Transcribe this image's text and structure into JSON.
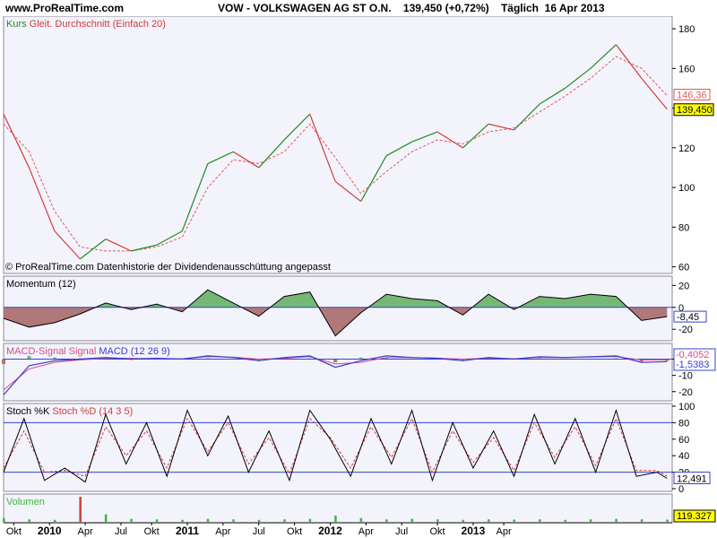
{
  "header": {
    "site": "www.ProRealTime.com",
    "title": "VOW - VOLKSWAGEN AG ST O.N.    139,450 (+0,72%)    Täglich  16 Apr 2013"
  },
  "colors": {
    "panel_bg": "#f3f3fc",
    "price_up": "#228b22",
    "price_down": "#d23c3c",
    "ma_line": "#e05a5a",
    "zero_line": "#3344cc",
    "macd_line": "#3b3bd0",
    "signal_line": "#d84a8a",
    "stoch_k": "#000000",
    "stoch_d": "#d23c3c",
    "hist_pos": "#74b874",
    "hist_neg": "#b07878",
    "value_box": "#ffff00",
    "volume_bar": "#3cb83c"
  },
  "chart_data": [
    {
      "id": "price",
      "type": "line",
      "legend": [
        "Kurs",
        "Gleit. Durchschnitt (Einfach 20)"
      ],
      "footnote": "© ProRealTime.com  Datenhistorie der Dividendenausschüttung angepasst",
      "ylim": [
        58,
        185
      ],
      "yticks": [
        60,
        80,
        100,
        120,
        140,
        160,
        180
      ],
      "ma_label": "146,36",
      "last_label": "139,450",
      "x": [
        0,
        5,
        10,
        15,
        20,
        25,
        30,
        35,
        40,
        45,
        50,
        55,
        60,
        65,
        70,
        75,
        80,
        85,
        90,
        95,
        100,
        105,
        110,
        115,
        120,
        125,
        130
      ],
      "close": [
        137,
        110,
        78,
        64,
        74,
        68,
        71,
        78,
        112,
        118,
        110,
        124,
        137,
        103,
        93,
        116,
        123,
        128,
        120,
        132,
        129,
        142,
        150,
        160,
        172,
        155,
        139.45
      ],
      "ma20": [
        132,
        118,
        88,
        70,
        68,
        68,
        70,
        75,
        100,
        114,
        112,
        118,
        132,
        115,
        97,
        108,
        118,
        124,
        122,
        128,
        130,
        138,
        146,
        155,
        166,
        160,
        146.36
      ]
    },
    {
      "id": "momentum",
      "type": "area",
      "legend": [
        "Momentum (12)"
      ],
      "ylim": [
        -28,
        26
      ],
      "yticks": [
        20,
        0,
        -20
      ],
      "last_label": "-8,45",
      "x": [
        0,
        5,
        10,
        15,
        20,
        25,
        30,
        35,
        40,
        45,
        50,
        55,
        60,
        65,
        70,
        75,
        80,
        85,
        90,
        95,
        100,
        105,
        110,
        115,
        120,
        125,
        130
      ],
      "values": [
        -10,
        -18,
        -14,
        -6,
        4,
        -2,
        3,
        -4,
        16,
        4,
        -8,
        10,
        14,
        -26,
        -5,
        12,
        8,
        6,
        -7,
        12,
        -2,
        10,
        8,
        12,
        10,
        -12,
        -8.45
      ]
    },
    {
      "id": "macd",
      "type": "line",
      "legend": [
        "MACD-Signal Signal",
        "MACD (12 26 9)"
      ],
      "ylim": [
        -24,
        8
      ],
      "yticks": [
        0,
        -10,
        -20
      ],
      "labels": [
        "-0,4052",
        "-1,5383"
      ],
      "x": [
        0,
        5,
        10,
        15,
        20,
        25,
        30,
        35,
        40,
        45,
        50,
        55,
        60,
        65,
        70,
        75,
        80,
        85,
        90,
        95,
        100,
        105,
        110,
        115,
        120,
        125,
        130
      ],
      "macd": [
        -22,
        -4,
        -1,
        0,
        1,
        0,
        0.5,
        0,
        2,
        1,
        -1,
        1,
        2,
        -5,
        -1,
        2,
        1,
        0.5,
        -1,
        1,
        0,
        1.5,
        1,
        1.5,
        2,
        -2,
        -1.54
      ],
      "signal": [
        -19,
        -6,
        -2,
        -0.5,
        0.5,
        0.5,
        0.2,
        0.2,
        1.5,
        1.2,
        0,
        0.5,
        1.5,
        -3,
        -2,
        1,
        1,
        0.6,
        0,
        0.6,
        0.3,
        1,
        1,
        1.2,
        1.5,
        -0.5,
        -0.41
      ]
    },
    {
      "id": "stochastic",
      "type": "line",
      "legend": [
        "Stoch %K",
        "Stoch %D (14 3 5)"
      ],
      "ylim": [
        0,
        100
      ],
      "yticks": [
        100,
        80,
        60,
        40,
        20,
        0
      ],
      "last_label": "12,491",
      "x": [
        0,
        4,
        8,
        12,
        16,
        20,
        24,
        28,
        32,
        36,
        40,
        44,
        48,
        52,
        56,
        60,
        64,
        68,
        72,
        76,
        80,
        84,
        88,
        92,
        96,
        100,
        104,
        108,
        112,
        116,
        120,
        124,
        128,
        130
      ],
      "k": [
        20,
        85,
        10,
        25,
        8,
        90,
        30,
        80,
        15,
        95,
        40,
        88,
        20,
        70,
        10,
        95,
        60,
        15,
        85,
        30,
        95,
        10,
        80,
        25,
        70,
        15,
        90,
        30,
        85,
        20,
        95,
        15,
        20,
        12.49
      ],
      "d": [
        25,
        70,
        20,
        22,
        15,
        75,
        40,
        70,
        25,
        85,
        45,
        80,
        30,
        62,
        18,
        85,
        62,
        25,
        75,
        38,
        85,
        20,
        70,
        32,
        62,
        22,
        80,
        38,
        75,
        28,
        85,
        22,
        22,
        15
      ]
    },
    {
      "id": "volume",
      "type": "bar",
      "legend": [
        "Volumen"
      ],
      "last_label": "119.327",
      "x": [
        0,
        5,
        10,
        15,
        20,
        25,
        30,
        35,
        40,
        45,
        50,
        55,
        60,
        65,
        70,
        75,
        80,
        85,
        90,
        95,
        100,
        105,
        110,
        115,
        120,
        125,
        130
      ],
      "values": [
        15,
        10,
        8,
        100,
        30,
        12,
        10,
        8,
        12,
        10,
        8,
        10,
        12,
        25,
        15,
        10,
        12,
        10,
        8,
        10,
        9,
        10,
        8,
        10,
        12,
        10,
        9
      ]
    }
  ],
  "x_axis": {
    "xlim": [
      0,
      131
    ],
    "ticks": [
      {
        "x": 2,
        "label": "Okt",
        "bold": false
      },
      {
        "x": 9,
        "label": "2010",
        "bold": true
      },
      {
        "x": 16,
        "label": "Apr",
        "bold": false
      },
      {
        "x": 23,
        "label": "Jul",
        "bold": false
      },
      {
        "x": 29,
        "label": "Okt",
        "bold": false
      },
      {
        "x": 36,
        "label": "2011",
        "bold": true
      },
      {
        "x": 43,
        "label": "Apr",
        "bold": false
      },
      {
        "x": 50,
        "label": "Jul",
        "bold": false
      },
      {
        "x": 57,
        "label": "Okt",
        "bold": false
      },
      {
        "x": 64,
        "label": "2012",
        "bold": true
      },
      {
        "x": 71,
        "label": "Apr",
        "bold": false
      },
      {
        "x": 78,
        "label": "Jul",
        "bold": false
      },
      {
        "x": 85,
        "label": "Okt",
        "bold": false
      },
      {
        "x": 92,
        "label": "2013",
        "bold": true
      },
      {
        "x": 98,
        "label": "Apr",
        "bold": false
      }
    ]
  }
}
